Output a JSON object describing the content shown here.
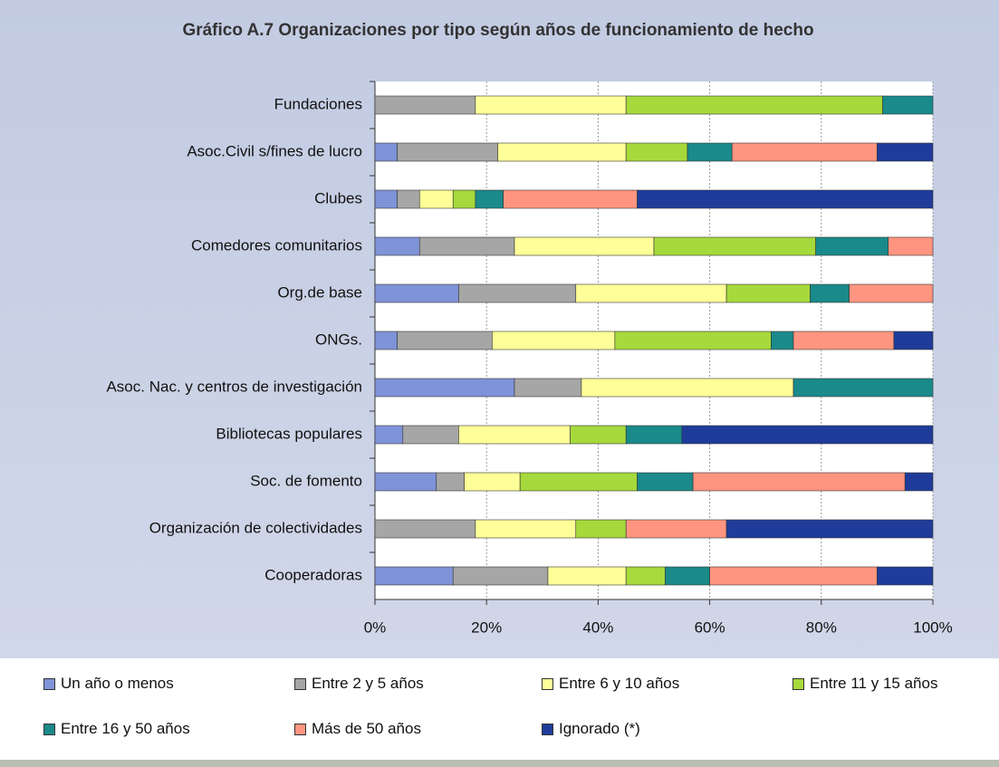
{
  "chart_data": {
    "type": "stacked_barh",
    "title": "Gráfico A.7 Organizaciones por tipo según años de funcionamiento de hecho",
    "categories": [
      "Fundaciones",
      "Asoc.Civil s/fines de lucro",
      "Clubes",
      "Comedores comunitarios",
      "Org.de base",
      "ONGs.",
      "Asoc. Nac. y centros de investigación",
      "Bibliotecas populares",
      "Soc. de fomento",
      "Organización de colectividades",
      "Cooperadoras"
    ],
    "series": [
      {
        "name": "Un año o menos",
        "color": "#7f93d8",
        "values": [
          0,
          4,
          4,
          8,
          15,
          4,
          25,
          5,
          11,
          0,
          14
        ]
      },
      {
        "name": "Entre 2 y 5 años",
        "color": "#a6a6a6",
        "values": [
          18,
          18,
          4,
          17,
          21,
          17,
          12,
          10,
          5,
          18,
          17
        ]
      },
      {
        "name": "Entre 6 y 10 años",
        "color": "#ffff99",
        "values": [
          27,
          23,
          6,
          25,
          27,
          22,
          38,
          20,
          10,
          18,
          14
        ]
      },
      {
        "name": "Entre 11 y 15 años",
        "color": "#a6d93c",
        "values": [
          46,
          11,
          4,
          29,
          15,
          28,
          0,
          10,
          21,
          9,
          7
        ]
      },
      {
        "name": "Entre 16 y 50 años",
        "color": "#1a8a8a",
        "values": [
          9,
          8,
          5,
          13,
          7,
          4,
          25,
          10,
          10,
          0,
          8
        ]
      },
      {
        "name": "Más de 50 años",
        "color": "#ff9580",
        "values": [
          0,
          26,
          24,
          8,
          15,
          18,
          0,
          0,
          38,
          18,
          30
        ]
      },
      {
        "name": "Ignorado (*)",
        "color": "#1f3c9a",
        "values": [
          0,
          10,
          53,
          0,
          0,
          7,
          0,
          45,
          5,
          37,
          10
        ]
      }
    ],
    "xlim": [
      0,
      100
    ],
    "xticks": [
      {
        "value": 0,
        "label": "0%"
      },
      {
        "value": 20,
        "label": "20%"
      },
      {
        "value": 40,
        "label": "40%"
      },
      {
        "value": 60,
        "label": "60%"
      },
      {
        "value": 80,
        "label": "80%"
      },
      {
        "value": 100,
        "label": "100%"
      }
    ],
    "grid": true
  }
}
